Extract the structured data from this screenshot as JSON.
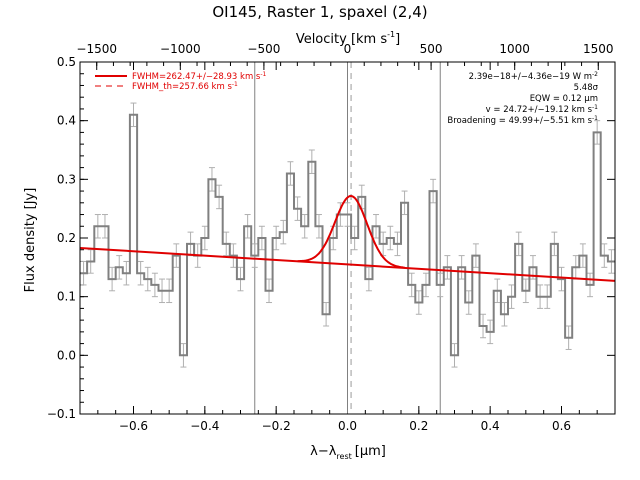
{
  "chart_data": {
    "type": "line",
    "title": "OI145, Raster 1, spaxel (2,4)",
    "xlabel": "λ−λ",
    "xlabel_sub": "rest",
    "xlabel_unit": "[μm]",
    "ylabel": "Flux density [Jy]",
    "top_axis_label": "Velocity [km s",
    "top_axis_label_sup": "-1",
    "top_axis_label_end": "]",
    "xlim": [
      -0.75,
      0.75
    ],
    "ylim": [
      -0.1,
      0.5
    ],
    "velocity_lim": [
      -1600,
      1600
    ],
    "x_ticks": [
      -0.6,
      -0.4,
      -0.2,
      0.0,
      0.2,
      0.4,
      0.6
    ],
    "x_tick_labels": [
      "−0.6",
      "−0.4",
      "−0.2",
      "0.0",
      "0.2",
      "0.4",
      "0.6"
    ],
    "y_ticks": [
      -0.1,
      0.0,
      0.1,
      0.2,
      0.3,
      0.4,
      0.5
    ],
    "y_tick_labels": [
      "−0.1",
      "0.0",
      "0.1",
      "0.2",
      "0.3",
      "0.4",
      "0.5"
    ],
    "top_ticks": [
      -1500,
      -1000,
      -500,
      0,
      500,
      1000,
      1500
    ],
    "top_tick_labels": [
      "−1500",
      "−1000",
      "−500",
      "0",
      "500",
      "1000",
      "1500"
    ],
    "vertical_lines": [
      -0.26,
      0.0,
      0.26
    ],
    "dashed_line_x": 0.01,
    "spectrum": {
      "name": "Observed spectrum",
      "x": [
        -0.74,
        -0.72,
        -0.7,
        -0.68,
        -0.66,
        -0.64,
        -0.62,
        -0.6,
        -0.58,
        -0.56,
        -0.54,
        -0.52,
        -0.5,
        -0.48,
        -0.46,
        -0.44,
        -0.42,
        -0.4,
        -0.38,
        -0.36,
        -0.34,
        -0.32,
        -0.3,
        -0.28,
        -0.26,
        -0.24,
        -0.22,
        -0.2,
        -0.18,
        -0.16,
        -0.14,
        -0.12,
        -0.1,
        -0.08,
        -0.06,
        -0.04,
        -0.02,
        0.0,
        0.02,
        0.04,
        0.06,
        0.08,
        0.1,
        0.12,
        0.14,
        0.16,
        0.18,
        0.2,
        0.22,
        0.24,
        0.26,
        0.28,
        0.3,
        0.32,
        0.34,
        0.36,
        0.38,
        0.4,
        0.42,
        0.44,
        0.46,
        0.48,
        0.5,
        0.52,
        0.54,
        0.56,
        0.58,
        0.6,
        0.62,
        0.64,
        0.66,
        0.68,
        0.7,
        0.72,
        0.74
      ],
      "y": [
        0.14,
        0.16,
        0.22,
        0.22,
        0.13,
        0.15,
        0.14,
        0.41,
        0.14,
        0.13,
        0.12,
        0.11,
        0.11,
        0.17,
        0.0,
        0.19,
        0.17,
        0.2,
        0.3,
        0.27,
        0.19,
        0.17,
        0.13,
        0.22,
        0.17,
        0.2,
        0.11,
        0.2,
        0.21,
        0.31,
        0.25,
        0.22,
        0.33,
        0.22,
        0.07,
        0.2,
        0.24,
        0.24,
        0.2,
        0.27,
        0.13,
        0.22,
        0.19,
        0.2,
        0.19,
        0.26,
        0.12,
        0.09,
        0.12,
        0.28,
        0.12,
        0.15,
        0.0,
        0.15,
        0.09,
        0.17,
        0.05,
        0.04,
        0.11,
        0.07,
        0.1,
        0.19,
        0.11,
        0.15,
        0.1,
        0.1,
        0.19,
        0.13,
        0.03,
        0.15,
        0.17,
        0.12,
        0.38,
        0.17,
        0.16
      ],
      "error": 0.02
    },
    "baseline": {
      "x": [
        -0.75,
        0.75
      ],
      "y": [
        0.183,
        0.127
      ]
    },
    "gaussian_fit": {
      "center": 0.01,
      "amplitude": 0.117,
      "sigma": 0.045,
      "range": [
        -0.14,
        0.16
      ]
    },
    "legend": [
      {
        "label": "FWHM=262.47+/−28.93 km s",
        "sup": "-1",
        "style": "solid"
      },
      {
        "label": "FWHM_th=257.66 km s",
        "sup": "-1",
        "style": "dashed"
      }
    ],
    "annotations": [
      {
        "text": "2.39e−18+/−4.36e−19 W m",
        "sup": "-2"
      },
      {
        "text": "5.48σ",
        "sup": ""
      },
      {
        "text": "EQW = 0.12 μm",
        "sup": ""
      },
      {
        "text": "v = 24.72+/−19.12 km s",
        "sup": "-1"
      },
      {
        "text": "Broadening = 49.99+/−5.51 km s",
        "sup": "-1"
      }
    ],
    "colors": {
      "spectrum": "#808080",
      "fit": "#e00000",
      "axis": "#000000",
      "markers": "#808080"
    }
  }
}
